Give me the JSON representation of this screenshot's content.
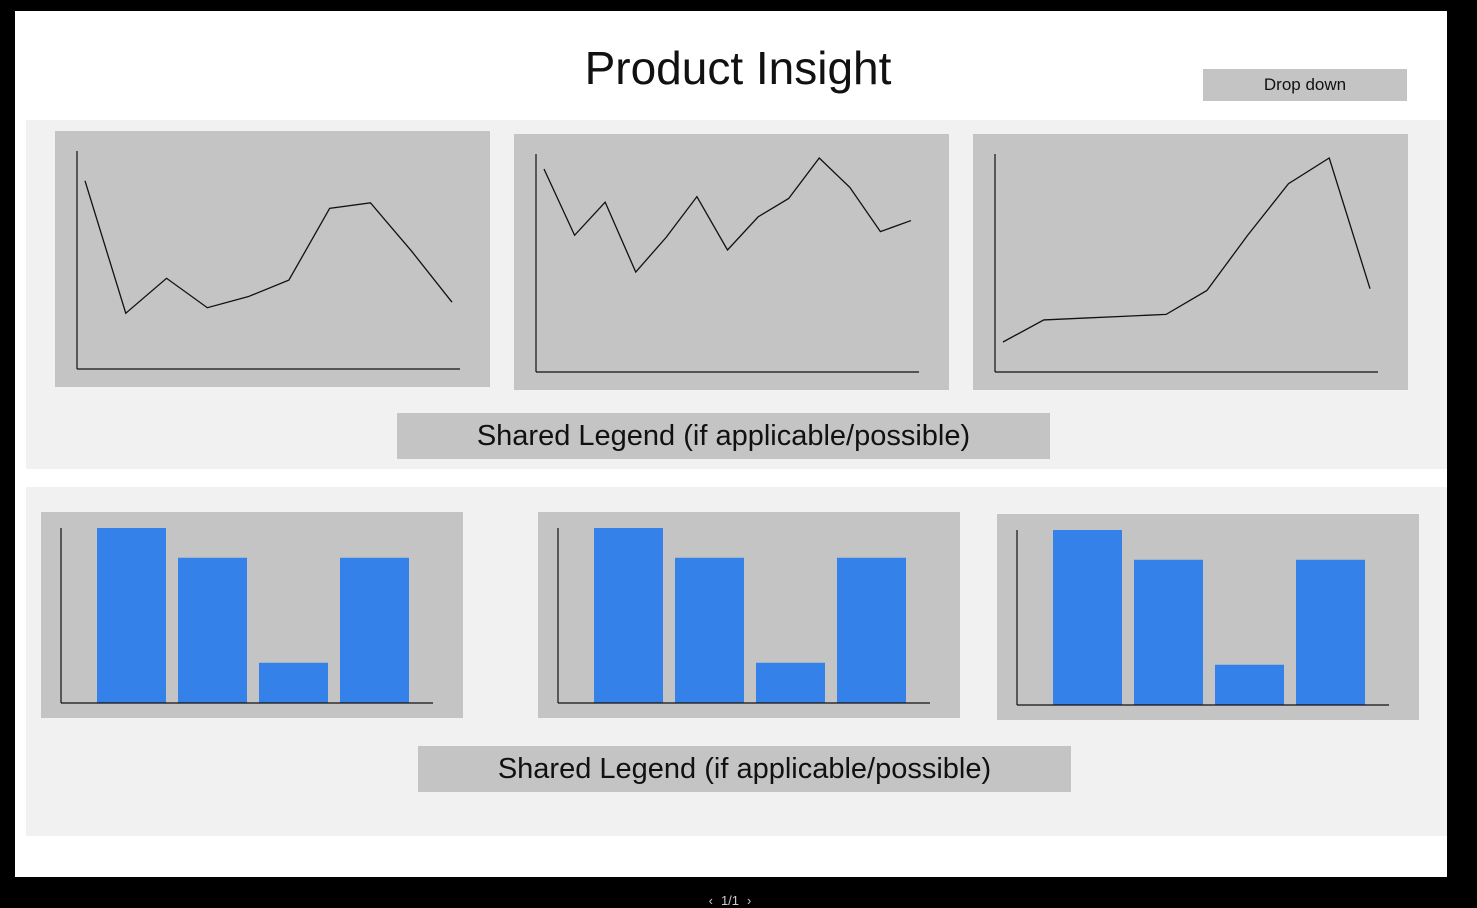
{
  "header": {
    "title": "Product Insight",
    "dropdown_label": "Drop down"
  },
  "line_section": {
    "legend_label": "Shared Legend (if applicable/possible)",
    "charts": [
      {
        "type": "line",
        "values": [
          86,
          14,
          33,
          17,
          23,
          32,
          71,
          74,
          48,
          20
        ]
      },
      {
        "type": "line",
        "values": [
          94,
          58,
          76,
          38,
          57,
          79,
          50,
          68,
          78,
          100,
          84,
          60,
          66
        ]
      },
      {
        "type": "line",
        "values": [
          0,
          12,
          13,
          14,
          15,
          28,
          58,
          86,
          100,
          29
        ]
      }
    ]
  },
  "bar_section": {
    "legend_label": "Shared Legend (if applicable/possible)",
    "charts": [
      {
        "type": "bar",
        "values": [
          100,
          83,
          23,
          83
        ]
      },
      {
        "type": "bar",
        "values": [
          100,
          83,
          23,
          83
        ]
      },
      {
        "type": "bar",
        "values": [
          100,
          83,
          23,
          83
        ]
      }
    ]
  },
  "colors": {
    "bar": "#3581ea",
    "panel": "#c4c4c4",
    "section": "#f1f1f1"
  },
  "pager": {
    "prev_icon": "chevron-left-icon",
    "label": "1/1",
    "next_icon": "chevron-right-icon"
  }
}
